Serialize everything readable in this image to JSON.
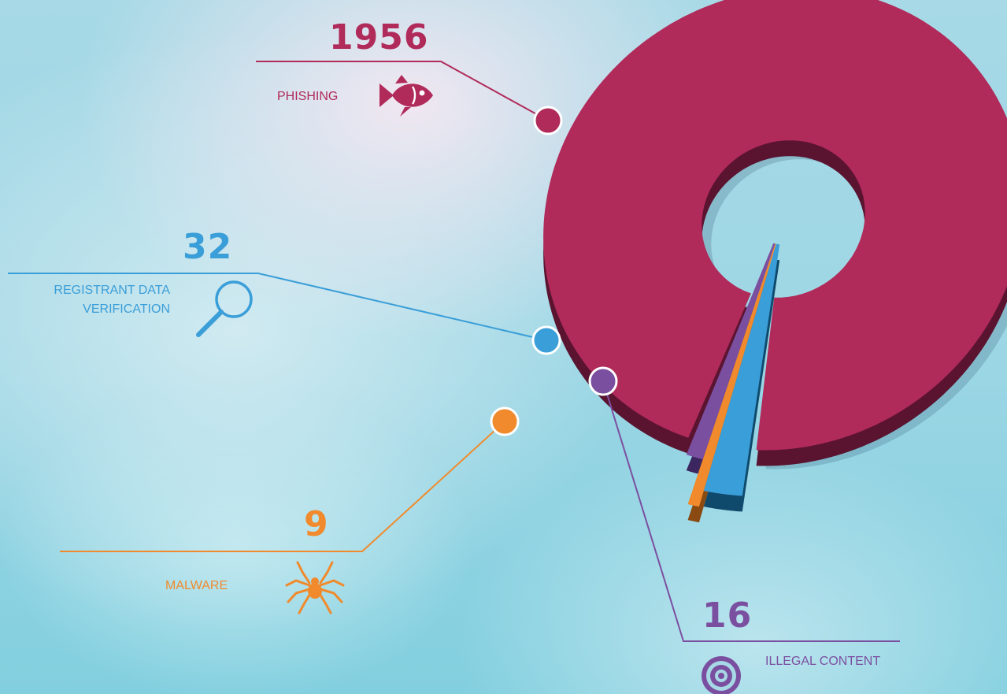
{
  "chart_data": {
    "type": "pie",
    "variant": "3d-donut-exploded",
    "categories": [
      "PHISHING",
      "REGISTRANT DATA VERIFICATION",
      "MALWARE",
      "ILLEGAL CONTENT"
    ],
    "values": [
      1956,
      32,
      9,
      16
    ],
    "labels": {
      "phishing": "PHISHING",
      "registrant_line1": "REGISTRANT DATA",
      "registrant_line2": "VERIFICATION",
      "malware": "MALWARE",
      "illegal": "ILLEGAL CONTENT"
    },
    "value_labels": {
      "phishing": "1956",
      "registrant": "32",
      "malware": "9",
      "illegal": "16"
    },
    "colors": {
      "phishing": "#b02a5a",
      "phishing_side": "#5a1430",
      "registrant": "#3a9ed8",
      "registrant_side": "#0f4a6c",
      "malware": "#f08a2c",
      "malware_side": "#8a4a12",
      "illegal": "#7b4fa0",
      "illegal_side": "#3c2660"
    },
    "icons": {
      "phishing": "fish-icon",
      "registrant": "magnifier-icon",
      "malware": "spider-icon",
      "illegal": "target-icon"
    }
  }
}
